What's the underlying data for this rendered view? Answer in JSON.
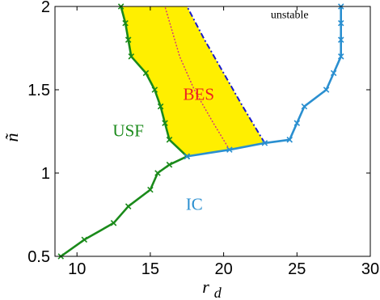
{
  "chart_data": {
    "type": "line",
    "title": "",
    "xlabel": "r",
    "xlabel_sub": "d",
    "ylabel": "ñ",
    "xlim": [
      8.5,
      30
    ],
    "ylim": [
      0.5,
      2
    ],
    "xticks": [
      "10",
      "15",
      "20",
      "25",
      "30"
    ],
    "xtick_values": [
      10,
      15,
      20,
      25,
      30
    ],
    "yticks": [
      "0.5",
      "1",
      "1.5",
      "2"
    ],
    "ytick_values": [
      0.5,
      1,
      1.5,
      2
    ],
    "grid": false,
    "legend": "none",
    "annotations": [
      {
        "text": "unstable",
        "x": 24.5,
        "y": 1.93,
        "color": "#000000",
        "size": "small"
      },
      {
        "text": "BES",
        "x": 18.3,
        "y": 1.44,
        "color": "#ee2222",
        "size": "large"
      },
      {
        "text": "USF",
        "x": 13.5,
        "y": 1.22,
        "color": "#1a8a1a",
        "size": "large"
      },
      {
        "text": "IC",
        "x": 18.0,
        "y": 0.78,
        "color": "#2a8fd0",
        "size": "large"
      }
    ],
    "regions": [
      {
        "name_ref": "BES",
        "color": "#ffef00",
        "left_boundary": [
          [
            13.0,
            2.0
          ],
          [
            13.3,
            1.9
          ],
          [
            13.5,
            1.8
          ],
          [
            13.7,
            1.7
          ],
          [
            14.7,
            1.6
          ],
          [
            15.3,
            1.5
          ],
          [
            15.7,
            1.4
          ],
          [
            16.0,
            1.3
          ],
          [
            16.3,
            1.2
          ],
          [
            17.5,
            1.1
          ]
        ],
        "bottom_boundary": [
          [
            17.5,
            1.1
          ],
          [
            20.4,
            1.14
          ],
          [
            22.8,
            1.18
          ]
        ],
        "right_boundary": [
          [
            22.8,
            1.18
          ],
          [
            21.3,
            1.4
          ],
          [
            20.0,
            1.6
          ],
          [
            18.7,
            1.8
          ],
          [
            17.5,
            2.0
          ]
        ]
      }
    ],
    "series": [
      {
        "label_ref": "USF",
        "color": "#1a8a1a",
        "style": "solid",
        "marker": "x",
        "x": [
          8.9,
          10.5,
          12.5,
          13.5,
          15.0,
          15.5,
          16.3,
          17.5
        ],
        "y": [
          0.5,
          0.6,
          0.7,
          0.8,
          0.9,
          1.0,
          1.05,
          1.1
        ]
      },
      {
        "label_ref": "USF",
        "color": "#1a8a1a",
        "style": "solid",
        "marker": "x",
        "x": [
          13.0,
          13.3,
          13.5,
          13.7,
          14.7,
          15.3,
          15.7,
          16.0,
          16.3,
          17.5
        ],
        "y": [
          2.0,
          1.9,
          1.8,
          1.7,
          1.6,
          1.5,
          1.4,
          1.3,
          1.2,
          1.1
        ]
      },
      {
        "label_ref": "IC",
        "color": "#2a8fd0",
        "style": "solid",
        "marker": "x",
        "x": [
          17.5,
          20.4,
          22.8,
          24.5,
          25.0,
          25.5,
          27.0,
          27.5,
          28.0,
          28.0,
          28.0,
          28.0
        ],
        "y": [
          1.1,
          1.14,
          1.18,
          1.2,
          1.3,
          1.4,
          1.5,
          1.6,
          1.7,
          1.8,
          1.9,
          2.0
        ]
      },
      {
        "color": "#1a1acc",
        "style": "dashdot",
        "marker": "none",
        "x": [
          22.8,
          21.3,
          20.0,
          18.7,
          17.5
        ],
        "y": [
          1.18,
          1.4,
          1.6,
          1.8,
          2.0
        ]
      },
      {
        "color": "#d03080",
        "style": "dotted",
        "marker": "none",
        "x": [
          20.4,
          19.3,
          18.0,
          17.0,
          16.0
        ],
        "y": [
          1.14,
          1.3,
          1.5,
          1.7,
          2.0
        ]
      }
    ]
  }
}
